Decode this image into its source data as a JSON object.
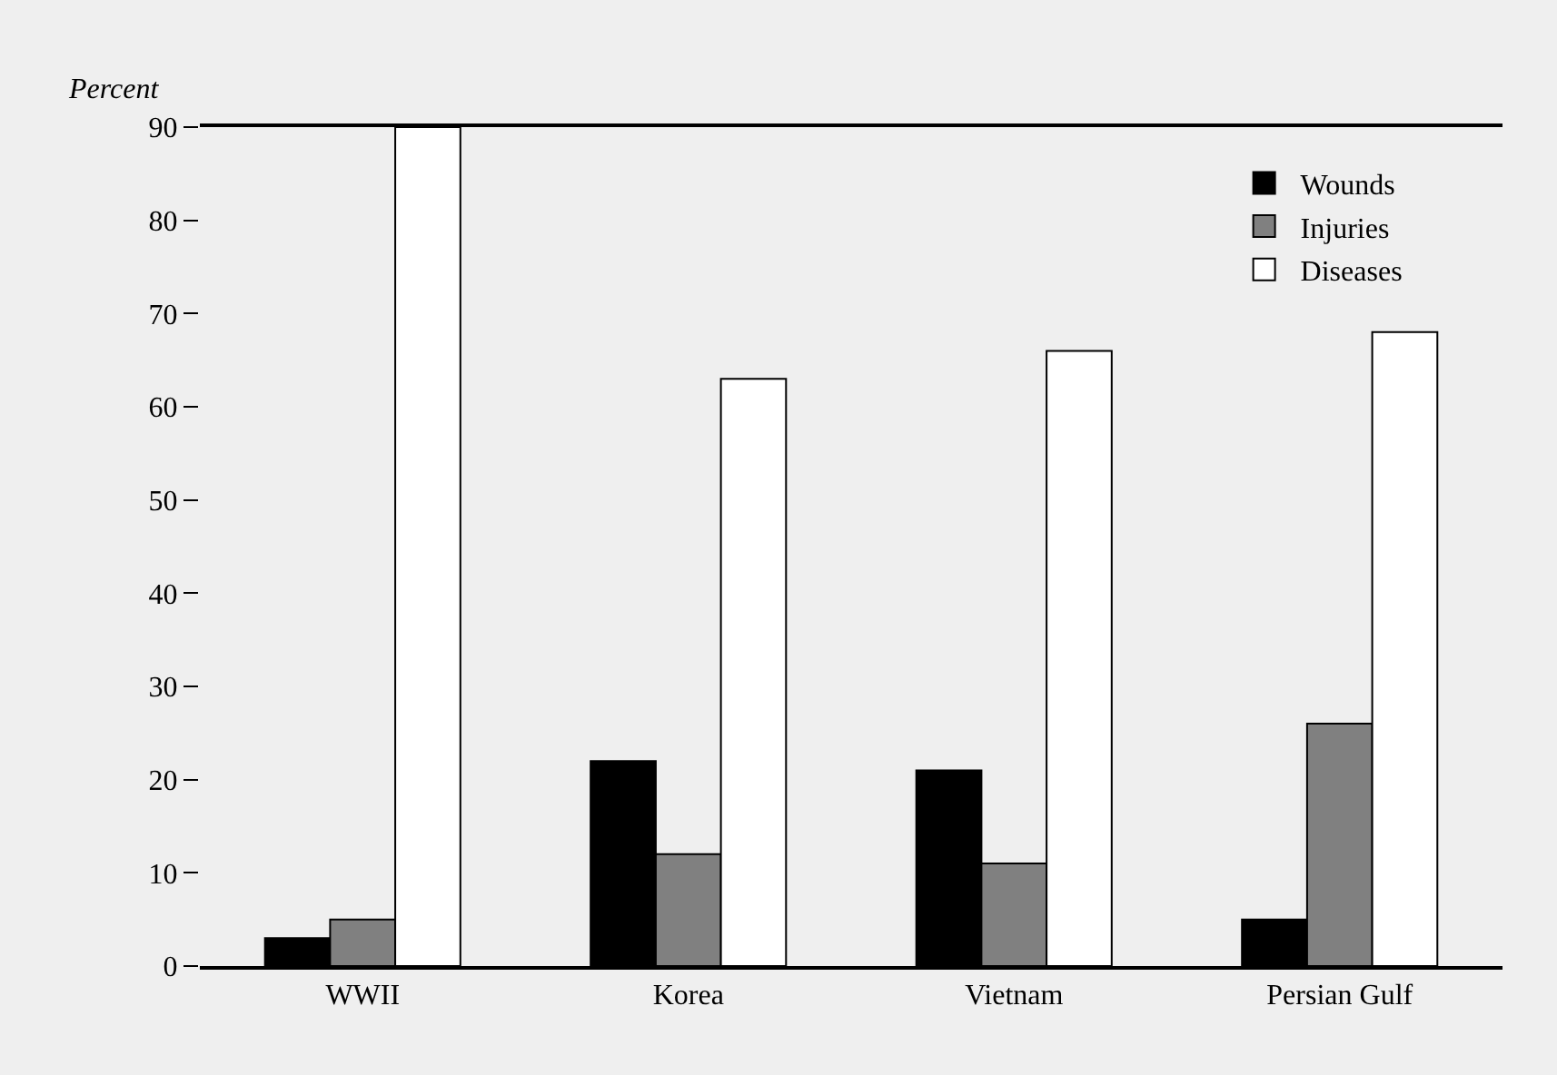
{
  "chart_data": {
    "type": "bar",
    "ylabel": "Percent",
    "categories": [
      "WWII",
      "Korea",
      "Vietnam",
      "Persian Gulf"
    ],
    "series": [
      {
        "name": "Wounds",
        "color": "#000000",
        "values": [
          3,
          22,
          21,
          5
        ]
      },
      {
        "name": "Injuries",
        "color": "#808080",
        "values": [
          5,
          12,
          11,
          26
        ]
      },
      {
        "name": "Diseases",
        "color": "#ffffff",
        "values": [
          90,
          63,
          66,
          68
        ]
      }
    ],
    "ylim": [
      0,
      90
    ],
    "yticks": [
      0,
      10,
      20,
      30,
      40,
      50,
      60,
      70,
      80,
      90
    ],
    "grid": false,
    "legend": "top right"
  }
}
